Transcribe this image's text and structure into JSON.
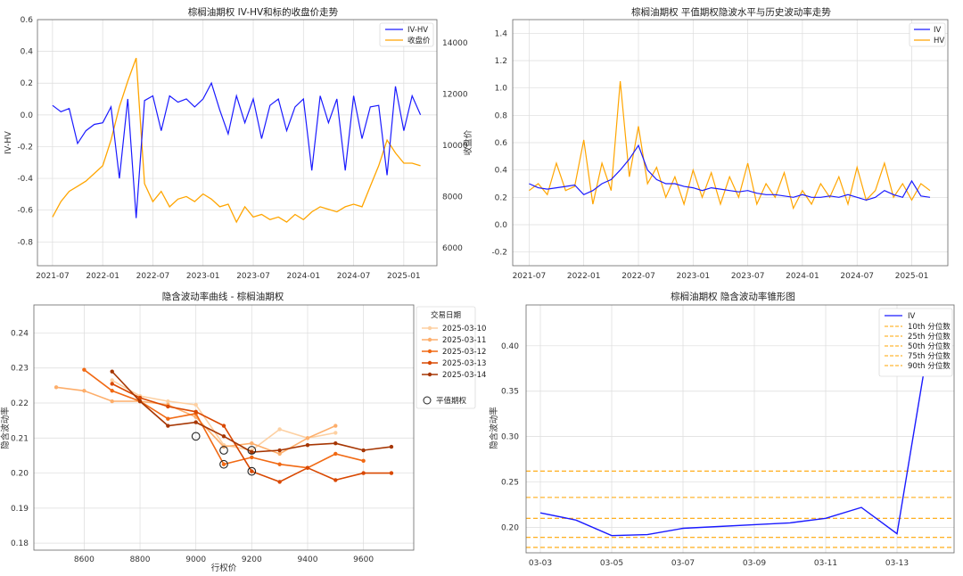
{
  "colors": {
    "iv": "#1a1aff",
    "hv": "#ffa500",
    "left_axis": "#1f77b4",
    "right_axis": "#ff2222",
    "grid": "#dcdcdc",
    "pct": "#ffa500",
    "reds": [
      "#fdd0a2",
      "#fdae6b",
      "#f16913",
      "#d94801",
      "#a63603"
    ]
  },
  "chart_data": [
    {
      "type": "line",
      "title": "棕榈油期权 IV-HV和标的收盘价走势",
      "xlabel": "",
      "ylabel": "IV-HV",
      "ylabel_right": "收盘价",
      "x_ticks": [
        "2021-07",
        "2022-01",
        "2022-07",
        "2023-01",
        "2023-07",
        "2024-01",
        "2024-07",
        "2025-01"
      ],
      "ylim": [
        -0.95,
        0.6
      ],
      "y_ticks": [
        "-0.8",
        "-0.6",
        "-0.4",
        "-0.2",
        "0.0",
        "0.2",
        "0.4",
        "0.6"
      ],
      "ylim_right": [
        5300,
        14900
      ],
      "y_ticks_right": [
        "6000",
        "8000",
        "10000",
        "12000",
        "14000"
      ],
      "legend": "top-right",
      "series": [
        {
          "name": "IV-HV",
          "axis": "left",
          "x": [
            "2021-07",
            "2021-08",
            "2021-09",
            "2021-10",
            "2021-11",
            "2021-12",
            "2022-01",
            "2022-02",
            "2022-03",
            "2022-04",
            "2022-05",
            "2022-06",
            "2022-07",
            "2022-08",
            "2022-09",
            "2022-10",
            "2022-11",
            "2022-12",
            "2023-01",
            "2023-02",
            "2023-03",
            "2023-04",
            "2023-05",
            "2023-06",
            "2023-07",
            "2023-08",
            "2023-09",
            "2023-10",
            "2023-11",
            "2023-12",
            "2024-01",
            "2024-02",
            "2024-03",
            "2024-04",
            "2024-05",
            "2024-06",
            "2024-07",
            "2024-08",
            "2024-09",
            "2024-10",
            "2024-11",
            "2024-12",
            "2025-01",
            "2025-02",
            "2025-03"
          ],
          "values": [
            0.06,
            0.02,
            0.04,
            -0.18,
            -0.1,
            -0.06,
            -0.05,
            0.05,
            -0.4,
            0.1,
            -0.65,
            0.09,
            0.12,
            -0.1,
            0.12,
            0.08,
            0.1,
            0.05,
            0.1,
            0.2,
            0.03,
            -0.12,
            0.12,
            -0.05,
            0.1,
            -0.15,
            0.06,
            0.1,
            -0.1,
            0.05,
            0.1,
            -0.35,
            0.12,
            -0.05,
            0.1,
            -0.35,
            0.12,
            -0.15,
            0.05,
            0.06,
            -0.38,
            0.18,
            -0.1,
            0.12,
            0.0
          ]
        },
        {
          "name": "收盘价",
          "axis": "right",
          "x": [
            "2021-07",
            "2021-08",
            "2021-09",
            "2021-10",
            "2021-11",
            "2021-12",
            "2022-01",
            "2022-02",
            "2022-03",
            "2022-04",
            "2022-05",
            "2022-06",
            "2022-07",
            "2022-08",
            "2022-09",
            "2022-10",
            "2022-11",
            "2022-12",
            "2023-01",
            "2023-02",
            "2023-03",
            "2023-04",
            "2023-05",
            "2023-06",
            "2023-07",
            "2023-08",
            "2023-09",
            "2023-10",
            "2023-11",
            "2023-12",
            "2024-01",
            "2024-02",
            "2024-03",
            "2024-04",
            "2024-05",
            "2024-06",
            "2024-07",
            "2024-08",
            "2024-09",
            "2024-10",
            "2024-11",
            "2024-12",
            "2025-01",
            "2025-02",
            "2025-03"
          ],
          "values": [
            7200,
            7800,
            8200,
            8400,
            8600,
            8900,
            9200,
            10200,
            11500,
            12500,
            13400,
            8500,
            7800,
            8200,
            7600,
            7900,
            8000,
            7800,
            8100,
            7900,
            7600,
            7700,
            7000,
            7600,
            7200,
            7300,
            7100,
            7200,
            7000,
            7300,
            7100,
            7400,
            7600,
            7500,
            7400,
            7600,
            7700,
            7600,
            8400,
            9200,
            10200,
            9700,
            9300,
            9300,
            9200
          ]
        }
      ]
    },
    {
      "type": "line",
      "title": "棕榈油期权 平值期权隐波水平与历史波动率走势",
      "xlabel": "",
      "ylabel": "",
      "x_ticks": [
        "2021-07",
        "2022-01",
        "2022-07",
        "2023-01",
        "2023-07",
        "2024-01",
        "2024-07",
        "2025-01"
      ],
      "ylim": [
        -0.3,
        1.5
      ],
      "y_ticks": [
        "-0.2",
        "0.0",
        "0.2",
        "0.4",
        "0.6",
        "0.8",
        "1.0",
        "1.2",
        "1.4"
      ],
      "legend": "top-right",
      "series": [
        {
          "name": "IV",
          "x": [
            "2021-07",
            "2021-08",
            "2021-09",
            "2021-10",
            "2021-11",
            "2021-12",
            "2022-01",
            "2022-02",
            "2022-03",
            "2022-04",
            "2022-05",
            "2022-06",
            "2022-07",
            "2022-08",
            "2022-09",
            "2022-10",
            "2022-11",
            "2022-12",
            "2023-01",
            "2023-02",
            "2023-03",
            "2023-04",
            "2023-05",
            "2023-06",
            "2023-07",
            "2023-08",
            "2023-09",
            "2023-10",
            "2023-11",
            "2023-12",
            "2024-01",
            "2024-02",
            "2024-03",
            "2024-04",
            "2024-05",
            "2024-06",
            "2024-07",
            "2024-08",
            "2024-09",
            "2024-10",
            "2024-11",
            "2024-12",
            "2025-01",
            "2025-02",
            "2025-03"
          ],
          "values": [
            0.3,
            0.27,
            0.26,
            0.27,
            0.28,
            0.29,
            0.22,
            0.25,
            0.3,
            0.33,
            0.4,
            0.48,
            0.58,
            0.4,
            0.33,
            0.3,
            0.3,
            0.28,
            0.27,
            0.25,
            0.27,
            0.26,
            0.25,
            0.24,
            0.25,
            0.23,
            0.22,
            0.22,
            0.21,
            0.2,
            0.22,
            0.2,
            0.2,
            0.21,
            0.2,
            0.22,
            0.2,
            0.18,
            0.2,
            0.25,
            0.22,
            0.2,
            0.32,
            0.21,
            0.2
          ]
        },
        {
          "name": "HV",
          "x": [
            "2021-07",
            "2021-08",
            "2021-09",
            "2021-10",
            "2021-11",
            "2021-12",
            "2022-01",
            "2022-02",
            "2022-03",
            "2022-04",
            "2022-05",
            "2022-06",
            "2022-07",
            "2022-08",
            "2022-09",
            "2022-10",
            "2022-11",
            "2022-12",
            "2023-01",
            "2023-02",
            "2023-03",
            "2023-04",
            "2023-05",
            "2023-06",
            "2023-07",
            "2023-08",
            "2023-09",
            "2023-10",
            "2023-11",
            "2023-12",
            "2024-01",
            "2024-02",
            "2024-03",
            "2024-04",
            "2024-05",
            "2024-06",
            "2024-07",
            "2024-08",
            "2024-09",
            "2024-10",
            "2024-11",
            "2024-12",
            "2025-01",
            "2025-02",
            "2025-03"
          ],
          "values": [
            0.25,
            0.3,
            0.22,
            0.45,
            0.25,
            0.28,
            0.62,
            0.15,
            0.45,
            0.25,
            1.05,
            0.35,
            0.72,
            0.3,
            0.42,
            0.2,
            0.35,
            0.15,
            0.4,
            0.2,
            0.38,
            0.15,
            0.35,
            0.2,
            0.45,
            0.15,
            0.3,
            0.2,
            0.38,
            0.12,
            0.25,
            0.15,
            0.3,
            0.2,
            0.35,
            0.15,
            0.42,
            0.18,
            0.25,
            0.45,
            0.2,
            0.3,
            0.18,
            0.3,
            0.25
          ]
        }
      ]
    },
    {
      "type": "line",
      "title": "隐含波动率曲线 - 棕榈油期权",
      "xlabel": "行权价",
      "ylabel": "隐含波动率",
      "xlim": [
        8420,
        9780
      ],
      "x_ticks": [
        "8600",
        "8800",
        "9000",
        "9200",
        "9400",
        "9600"
      ],
      "ylim": [
        0.178,
        0.248
      ],
      "y_ticks": [
        "0.18",
        "0.19",
        "0.20",
        "0.21",
        "0.22",
        "0.23",
        "0.24"
      ],
      "legend_title": "交易日期",
      "legend": "top-right",
      "series": [
        {
          "name": "2025-03-10",
          "x": [
            8700,
            8800,
            8900,
            9000,
            9100,
            9200,
            9300,
            9400,
            9500
          ],
          "values": [
            0.2265,
            0.222,
            0.2205,
            0.2195,
            0.208,
            0.2065,
            0.2125,
            0.21,
            0.2115
          ]
        },
        {
          "name": "2025-03-11",
          "x": [
            8500,
            8600,
            8700,
            8800,
            8900,
            9000,
            9100,
            9200,
            9300,
            9400,
            9500
          ],
          "values": [
            0.2245,
            0.2235,
            0.2205,
            0.2205,
            0.2195,
            0.216,
            0.2075,
            0.2085,
            0.2055,
            0.21,
            0.2135
          ]
        },
        {
          "name": "2025-03-12",
          "x": [
            8600,
            8700,
            8800,
            8900,
            9000,
            9100,
            9200,
            9300,
            9400,
            9500,
            9600
          ],
          "values": [
            0.2295,
            0.2235,
            0.2205,
            0.2155,
            0.217,
            0.2025,
            0.2045,
            0.2025,
            0.2015,
            0.2055,
            0.2035
          ]
        },
        {
          "name": "2025-03-13",
          "x": [
            8700,
            8800,
            8900,
            9000,
            9100,
            9200,
            9300,
            9400,
            9500,
            9600,
            9700
          ],
          "values": [
            0.2255,
            0.2215,
            0.219,
            0.2175,
            0.2135,
            0.2005,
            0.1975,
            0.2015,
            0.198,
            0.2,
            0.2
          ]
        },
        {
          "name": "2025-03-14",
          "x": [
            8700,
            8800,
            8900,
            9000,
            9100,
            9200,
            9300,
            9400,
            9500,
            9600,
            9700
          ],
          "values": [
            0.229,
            0.2205,
            0.2135,
            0.2145,
            0.2105,
            0.206,
            0.2065,
            0.208,
            0.2085,
            0.2065,
            0.2075
          ]
        }
      ],
      "atm": {
        "name": "平值期权",
        "x": [
          9000,
          9100,
          9100,
          9200,
          9200
        ],
        "values": [
          0.2105,
          0.2065,
          0.2025,
          0.2005,
          0.2065
        ]
      }
    },
    {
      "type": "line",
      "title": "棕榈油期权 隐含波动率锥形图",
      "xlabel": "",
      "ylabel": "隐含波动率",
      "xlim": [
        -0.4,
        11.6
      ],
      "x_ticks": [
        "03-03",
        "03-05",
        "03-07",
        "03-09",
        "03-11",
        "03-13"
      ],
      "ylim": [
        0.172,
        0.445
      ],
      "y_ticks": [
        "0.20",
        "0.25",
        "0.30",
        "0.35",
        "0.40"
      ],
      "legend": "top-right",
      "series": [
        {
          "name": "IV",
          "x": [
            0,
            1,
            2,
            3,
            4,
            5,
            6,
            7,
            8,
            9,
            10,
            11
          ],
          "values": [
            0.216,
            0.208,
            0.191,
            0.192,
            0.199,
            0.201,
            0.203,
            0.205,
            0.21,
            0.222,
            0.193,
            0.43
          ]
        }
      ],
      "percentiles": [
        {
          "name": "10th 分位数",
          "value": 0.178
        },
        {
          "name": "25th 分位数",
          "value": 0.189
        },
        {
          "name": "50th 分位数",
          "value": 0.21
        },
        {
          "name": "75th 分位数",
          "value": 0.233
        },
        {
          "name": "90th 分位数",
          "value": 0.262
        }
      ]
    }
  ]
}
